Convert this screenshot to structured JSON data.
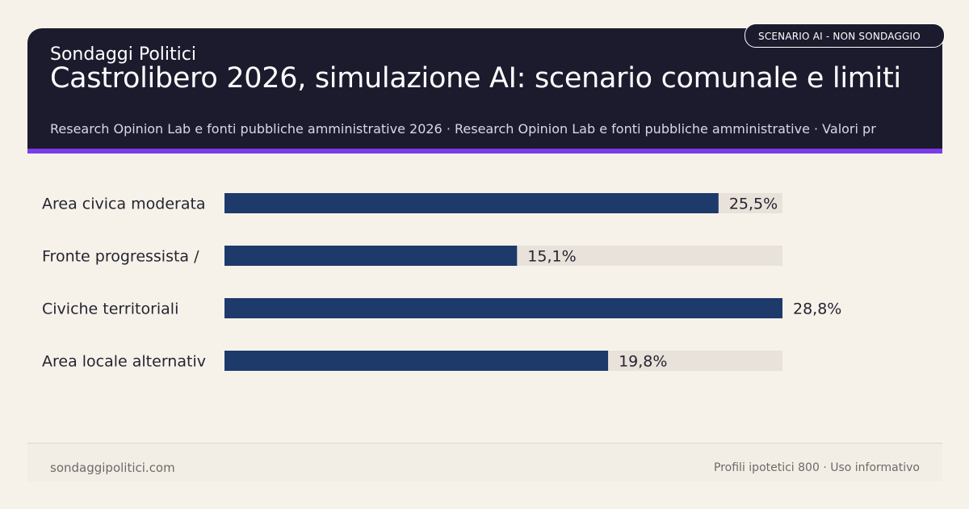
{
  "header": {
    "brand": "Sondaggi Politici",
    "title": "Castrolibero 2026, simulazione AI: scenario comunale e limiti",
    "subtitle": "Research Opinion Lab e fonti pubbliche amministrative 2026 · Research Opinion Lab e fonti pubbliche amministrative · Valori pr",
    "badge": "SCENARIO AI - NON SONDAGGIO"
  },
  "colors": {
    "header_bg": "#1c1b2e",
    "accent": "#7c3aed",
    "bar": "#1e3a6a",
    "track": "#e8e2da",
    "background": "#f6f2ea"
  },
  "chart_data": {
    "type": "bar",
    "orientation": "horizontal",
    "categories": [
      "Area civica moderata",
      "Fronte progressista /",
      "Civiche territoriali",
      "Area locale alternativ"
    ],
    "values": [
      25.5,
      15.1,
      28.8,
      19.8
    ],
    "value_labels": [
      "25,5%",
      "15,1%",
      "28,8%",
      "19,8%"
    ],
    "xlim": [
      0,
      28.8
    ],
    "grid": false
  },
  "footer": {
    "left": "sondaggipolitici.com",
    "right": "Profili ipotetici 800 · Uso informativo"
  }
}
